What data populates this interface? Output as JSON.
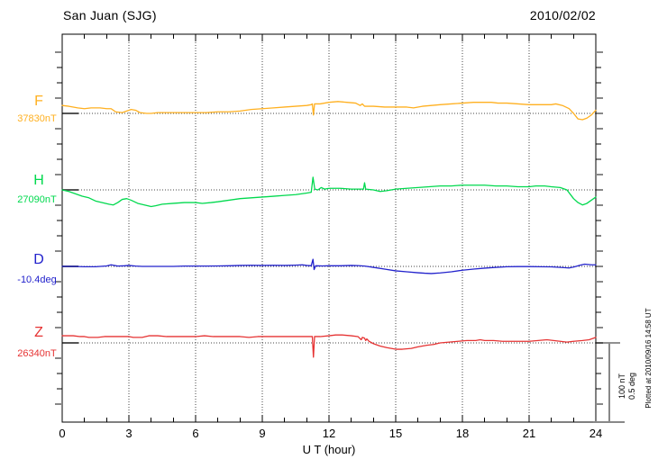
{
  "chart_data": {
    "type": "line",
    "title": "San Juan (SJG)",
    "date": "2010/02/02",
    "xlabel": "U T (hour)",
    "x_range": [
      0,
      24
    ],
    "x_ticks": [
      0,
      3,
      6,
      9,
      12,
      15,
      18,
      21,
      24
    ],
    "grid": "dotted vertical lines every 3 hours, dotted horizontal baseline per channel",
    "scale_bar": {
      "line1": "100 nT",
      "line2": "0.5 deg"
    },
    "plotted_note": "Plotted at 2010/09/16 14:58 UT",
    "series": [
      {
        "name": "F",
        "baseline_label": "37830nT",
        "unit": "nT",
        "color": "#FFB020",
        "points": [
          [
            0,
            10
          ],
          [
            0.3,
            9
          ],
          [
            0.7,
            7
          ],
          [
            1,
            6
          ],
          [
            1.3,
            7
          ],
          [
            1.7,
            7
          ],
          [
            2,
            6
          ],
          [
            2.2,
            6
          ],
          [
            2.4,
            2
          ],
          [
            2.7,
            1
          ],
          [
            2.9,
            3
          ],
          [
            3.1,
            5
          ],
          [
            3.3,
            4
          ],
          [
            3.5,
            1
          ],
          [
            3.8,
            0
          ],
          [
            4,
            0
          ],
          [
            4.3,
            1
          ],
          [
            4.7,
            1
          ],
          [
            5,
            1
          ],
          [
            5.5,
            1
          ],
          [
            6,
            1
          ],
          [
            6.5,
            1
          ],
          [
            7,
            2
          ],
          [
            7.5,
            2
          ],
          [
            8,
            3
          ],
          [
            8.5,
            5
          ],
          [
            9,
            6
          ],
          [
            9.5,
            7
          ],
          [
            10,
            8
          ],
          [
            10.5,
            9
          ],
          [
            11,
            10
          ],
          [
            11.2,
            11
          ],
          [
            11.25,
            12
          ],
          [
            11.3,
            -2
          ],
          [
            11.35,
            12
          ],
          [
            11.6,
            12
          ],
          [
            12,
            14
          ],
          [
            12.4,
            15
          ],
          [
            12.8,
            14
          ],
          [
            13.2,
            13
          ],
          [
            13.4,
            10
          ],
          [
            13.5,
            12
          ],
          [
            13.6,
            9
          ],
          [
            13.8,
            9
          ],
          [
            14,
            9
          ],
          [
            14.5,
            8
          ],
          [
            15,
            8
          ],
          [
            15.5,
            8
          ],
          [
            15.8,
            7
          ],
          [
            16.2,
            9
          ],
          [
            16.6,
            10
          ],
          [
            17,
            11
          ],
          [
            17.5,
            12
          ],
          [
            18,
            13
          ],
          [
            18.5,
            14
          ],
          [
            19,
            14
          ],
          [
            19.3,
            14
          ],
          [
            19.6,
            13
          ],
          [
            20,
            13
          ],
          [
            20.5,
            12
          ],
          [
            21,
            11
          ],
          [
            21.5,
            11
          ],
          [
            22,
            11
          ],
          [
            22.2,
            12
          ],
          [
            22.5,
            10
          ],
          [
            22.8,
            6
          ],
          [
            23,
            0
          ],
          [
            23.2,
            -7
          ],
          [
            23.4,
            -8
          ],
          [
            23.6,
            -6
          ],
          [
            23.8,
            -2
          ],
          [
            24,
            4
          ]
        ]
      },
      {
        "name": "H",
        "baseline_label": "27090nT",
        "unit": "nT",
        "color": "#00D94E",
        "points": [
          [
            0,
            0
          ],
          [
            0.3,
            -2
          ],
          [
            0.6,
            -5
          ],
          [
            0.9,
            -8
          ],
          [
            1.2,
            -10
          ],
          [
            1.5,
            -14
          ],
          [
            1.8,
            -16
          ],
          [
            2.1,
            -18
          ],
          [
            2.3,
            -19
          ],
          [
            2.5,
            -16
          ],
          [
            2.7,
            -12
          ],
          [
            2.9,
            -11
          ],
          [
            3.1,
            -13
          ],
          [
            3.4,
            -17
          ],
          [
            3.7,
            -19
          ],
          [
            4,
            -21
          ],
          [
            4.2,
            -20
          ],
          [
            4.5,
            -18
          ],
          [
            5,
            -17
          ],
          [
            5.5,
            -16
          ],
          [
            6,
            -16
          ],
          [
            6.3,
            -17
          ],
          [
            6.7,
            -16
          ],
          [
            7,
            -15
          ],
          [
            7.5,
            -13
          ],
          [
            8,
            -11
          ],
          [
            8.5,
            -10
          ],
          [
            9,
            -9
          ],
          [
            9.5,
            -8
          ],
          [
            10,
            -7
          ],
          [
            10.5,
            -6
          ],
          [
            11,
            -4
          ],
          [
            11.2,
            -3
          ],
          [
            11.28,
            16
          ],
          [
            11.36,
            1
          ],
          [
            11.5,
            0
          ],
          [
            11.65,
            3
          ],
          [
            11.8,
            1
          ],
          [
            12,
            2
          ],
          [
            12.5,
            2
          ],
          [
            13,
            1
          ],
          [
            13.3,
            1
          ],
          [
            13.55,
            1
          ],
          [
            13.6,
            9
          ],
          [
            13.65,
            1
          ],
          [
            14,
            0
          ],
          [
            14.3,
            -2
          ],
          [
            14.6,
            -1
          ],
          [
            15,
            1
          ],
          [
            15.5,
            2
          ],
          [
            16,
            3
          ],
          [
            16.5,
            4
          ],
          [
            17,
            5
          ],
          [
            17.5,
            5
          ],
          [
            18,
            6
          ],
          [
            18.5,
            6
          ],
          [
            19,
            6
          ],
          [
            19.5,
            5
          ],
          [
            20,
            5
          ],
          [
            20.5,
            4
          ],
          [
            21,
            4
          ],
          [
            21.3,
            5
          ],
          [
            21.7,
            5
          ],
          [
            22,
            4
          ],
          [
            22.4,
            3
          ],
          [
            22.7,
            0
          ],
          [
            23,
            -11
          ],
          [
            23.2,
            -16
          ],
          [
            23.4,
            -19
          ],
          [
            23.6,
            -17
          ],
          [
            23.8,
            -13
          ],
          [
            24,
            -9
          ]
        ]
      },
      {
        "name": "D",
        "baseline_label": "-10.4deg",
        "unit": "deg",
        "color": "#2222CC",
        "points": [
          [
            0,
            0
          ],
          [
            0.5,
            0
          ],
          [
            1,
            -0.002
          ],
          [
            1.5,
            -0.002
          ],
          [
            2,
            0.003
          ],
          [
            2.2,
            0.01
          ],
          [
            2.5,
            0.002
          ],
          [
            2.8,
            0.004
          ],
          [
            3,
            0.006
          ],
          [
            3.3,
            0.002
          ],
          [
            3.6,
            0
          ],
          [
            4,
            0
          ],
          [
            4.5,
            0
          ],
          [
            5,
            0
          ],
          [
            5.5,
            0.002
          ],
          [
            6,
            0.002
          ],
          [
            6.5,
            0.002
          ],
          [
            7,
            0.003
          ],
          [
            7.5,
            0.004
          ],
          [
            8,
            0.006
          ],
          [
            8.5,
            0.007
          ],
          [
            9,
            0.006
          ],
          [
            9.5,
            0.007
          ],
          [
            10,
            0.006
          ],
          [
            10.5,
            0.008
          ],
          [
            10.8,
            0.01
          ],
          [
            11,
            0.006
          ],
          [
            11.2,
            0.004
          ],
          [
            11.28,
            0.045
          ],
          [
            11.33,
            -0.02
          ],
          [
            11.4,
            0.004
          ],
          [
            11.7,
            0.003
          ],
          [
            12,
            0.004
          ],
          [
            12.5,
            0.004
          ],
          [
            13,
            0.006
          ],
          [
            13.3,
            0.005
          ],
          [
            13.6,
            0.002
          ],
          [
            14,
            -0.006
          ],
          [
            14.5,
            -0.017
          ],
          [
            15,
            -0.028
          ],
          [
            15.5,
            -0.034
          ],
          [
            16,
            -0.04
          ],
          [
            16.3,
            -0.043
          ],
          [
            16.6,
            -0.045
          ],
          [
            17,
            -0.041
          ],
          [
            17.5,
            -0.034
          ],
          [
            18,
            -0.024
          ],
          [
            18.5,
            -0.017
          ],
          [
            19,
            -0.011
          ],
          [
            19.5,
            -0.006
          ],
          [
            20,
            -0.002
          ],
          [
            20.5,
            -0.001
          ],
          [
            21,
            -0.001
          ],
          [
            21.5,
            -0.002
          ],
          [
            22,
            -0.003
          ],
          [
            22.5,
            -0.007
          ],
          [
            22.8,
            -0.01
          ],
          [
            23,
            -0.004
          ],
          [
            23.3,
            0.008
          ],
          [
            23.5,
            0.014
          ],
          [
            23.8,
            0.01
          ],
          [
            24,
            0.01
          ]
        ]
      },
      {
        "name": "Z",
        "baseline_label": "26340nT",
        "unit": "nT",
        "color": "#E63333",
        "points": [
          [
            0,
            9
          ],
          [
            0.5,
            9
          ],
          [
            0.8,
            8
          ],
          [
            1,
            8
          ],
          [
            1.2,
            7
          ],
          [
            1.6,
            7
          ],
          [
            1.9,
            8
          ],
          [
            2.3,
            8
          ],
          [
            2.7,
            8
          ],
          [
            3,
            8
          ],
          [
            3.2,
            7
          ],
          [
            3.6,
            7
          ],
          [
            3.9,
            9
          ],
          [
            4.3,
            9
          ],
          [
            4.7,
            8
          ],
          [
            5,
            8
          ],
          [
            5.5,
            8
          ],
          [
            6,
            8
          ],
          [
            6.4,
            9
          ],
          [
            6.8,
            8
          ],
          [
            7.2,
            8
          ],
          [
            7.6,
            8
          ],
          [
            8,
            8
          ],
          [
            8.4,
            7
          ],
          [
            8.8,
            8
          ],
          [
            9.2,
            8
          ],
          [
            9.6,
            8
          ],
          [
            10,
            8
          ],
          [
            10.4,
            8
          ],
          [
            10.8,
            8
          ],
          [
            11.1,
            8
          ],
          [
            11.25,
            8
          ],
          [
            11.3,
            -18
          ],
          [
            11.35,
            8
          ],
          [
            11.6,
            8
          ],
          [
            12,
            9
          ],
          [
            12.3,
            10
          ],
          [
            12.6,
            10
          ],
          [
            13,
            9
          ],
          [
            13.3,
            8
          ],
          [
            13.45,
            4
          ],
          [
            13.5,
            7
          ],
          [
            13.6,
            6
          ],
          [
            13.65,
            3
          ],
          [
            13.7,
            5
          ],
          [
            13.8,
            2
          ],
          [
            14,
            -1
          ],
          [
            14.3,
            -4
          ],
          [
            14.6,
            -6
          ],
          [
            15,
            -8
          ],
          [
            15.3,
            -8
          ],
          [
            15.7,
            -7
          ],
          [
            16,
            -5
          ],
          [
            16.4,
            -3
          ],
          [
            16.7,
            -2
          ],
          [
            17,
            0
          ],
          [
            17.4,
            1
          ],
          [
            17.8,
            2
          ],
          [
            18.2,
            3
          ],
          [
            18.6,
            3
          ],
          [
            18.8,
            4
          ],
          [
            19,
            3
          ],
          [
            19.4,
            3
          ],
          [
            19.8,
            2
          ],
          [
            20.2,
            2
          ],
          [
            20.6,
            2
          ],
          [
            21,
            2
          ],
          [
            21.4,
            3
          ],
          [
            21.8,
            4
          ],
          [
            22.1,
            3
          ],
          [
            22.4,
            2
          ],
          [
            22.7,
            1
          ],
          [
            23,
            2
          ],
          [
            23.4,
            3
          ],
          [
            23.7,
            4
          ],
          [
            24,
            7
          ]
        ]
      }
    ]
  }
}
